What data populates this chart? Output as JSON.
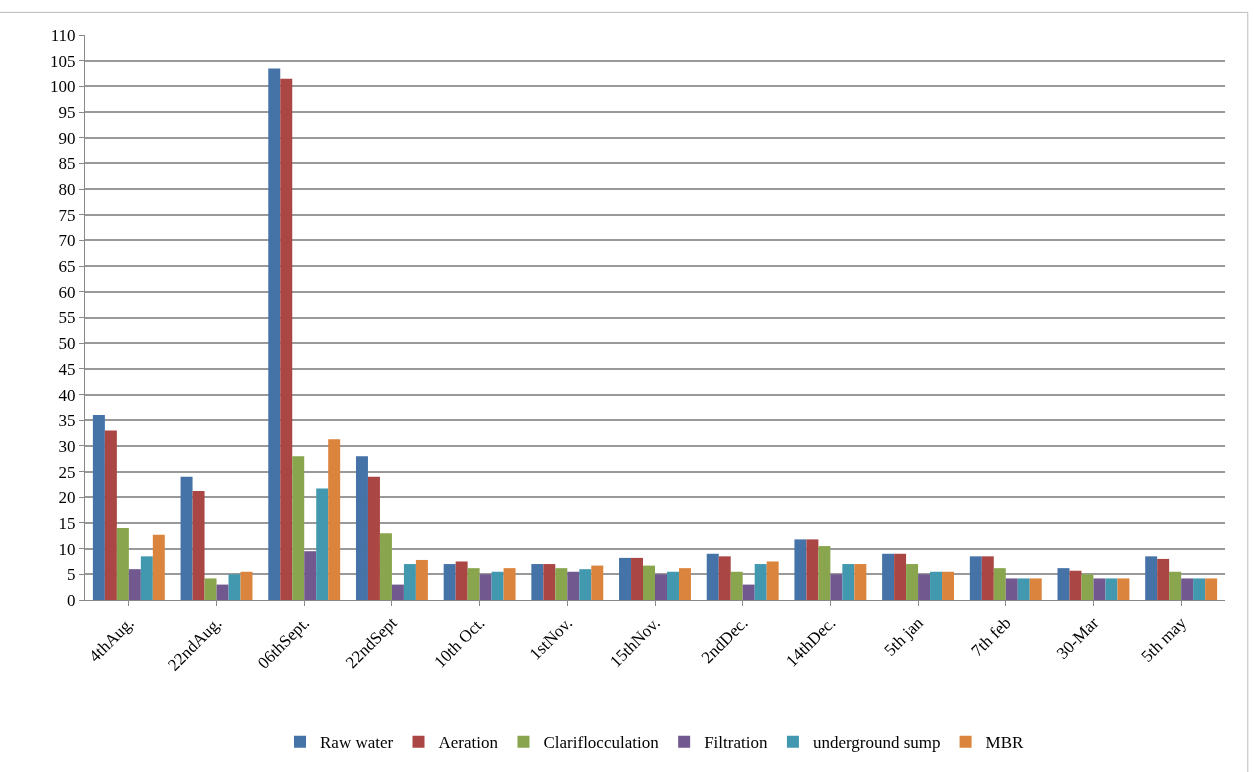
{
  "chart_data": {
    "type": "bar",
    "categories": [
      "4thAug.",
      "22ndAug.",
      "06thSept.",
      "22ndSept",
      "10th Oct.",
      "1stNov.",
      "15thNov.",
      "2ndDec.",
      "14thDec.",
      "5th jan",
      "7th feb",
      "30-Mar",
      "5th may"
    ],
    "series": [
      {
        "name": "Raw water",
        "color": "#4572a7",
        "values": [
          36,
          24,
          103.5,
          28,
          7,
          7,
          8.2,
          9,
          11.8,
          9,
          8.5,
          6.2,
          8.5
        ]
      },
      {
        "name": "Aeration",
        "color": "#aa4643",
        "values": [
          33,
          21.2,
          101.5,
          24,
          7.5,
          7,
          8.2,
          8.5,
          11.8,
          9,
          8.5,
          5.7,
          8
        ]
      },
      {
        "name": "Clariflocculation",
        "color": "#89a54e",
        "values": [
          14,
          4.2,
          28,
          13,
          6.2,
          6.2,
          6.7,
          5.5,
          10.5,
          7,
          6.2,
          5,
          5.5
        ]
      },
      {
        "name": "Filtration",
        "color": "#71588f",
        "values": [
          6,
          3,
          9.5,
          3,
          5,
          5.5,
          5,
          3,
          5,
          5,
          4.2,
          4.2,
          4.2
        ]
      },
      {
        "name": "underground sump",
        "color": "#4198af",
        "values": [
          8.5,
          5,
          21.7,
          7,
          5.5,
          6,
          5.5,
          7,
          7,
          5.5,
          4.2,
          4.2,
          4.2
        ]
      },
      {
        "name": "MBR",
        "color": "#db843d",
        "values": [
          12.7,
          5.5,
          31.3,
          7.8,
          6.2,
          6.7,
          6.2,
          7.5,
          7,
          5.5,
          4.2,
          4.2,
          4.2
        ]
      }
    ],
    "ylim": [
      0,
      110
    ],
    "yticks": [
      0,
      5,
      10,
      15,
      20,
      25,
      30,
      35,
      40,
      45,
      50,
      55,
      60,
      65,
      70,
      75,
      80,
      85,
      90,
      95,
      100,
      105,
      110
    ],
    "grid": "y",
    "legend": "bottom"
  }
}
